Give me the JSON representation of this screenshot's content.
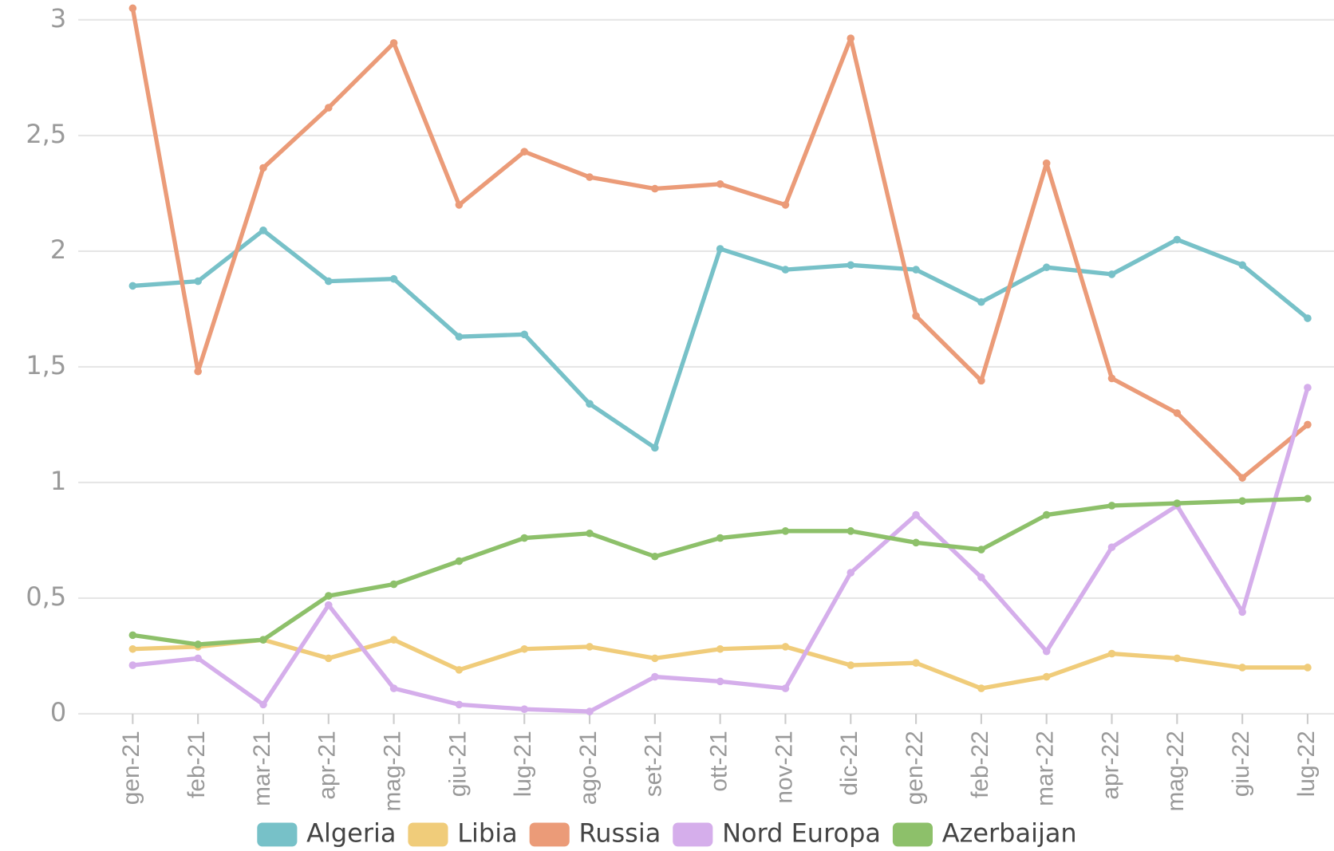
{
  "chart_data": {
    "type": "line",
    "categories": [
      "gen-21",
      "feb-21",
      "mar-21",
      "apr-21",
      "mag-21",
      "giu-21",
      "lug-21",
      "ago-21",
      "set-21",
      "ott-21",
      "nov-21",
      "dic-21",
      "gen-22",
      "feb-22",
      "mar-22",
      "apr-22",
      "mag-22",
      "giu-22",
      "lug-22"
    ],
    "series": [
      {
        "name": "Algeria",
        "color": "#77c1c8",
        "values": [
          1.85,
          1.87,
          2.09,
          1.87,
          1.88,
          1.63,
          1.64,
          1.34,
          1.15,
          2.01,
          1.92,
          1.94,
          1.92,
          1.78,
          1.93,
          1.9,
          2.05,
          1.94,
          1.71
        ]
      },
      {
        "name": "Libia",
        "color": "#f0cc7a",
        "values": [
          0.28,
          0.29,
          0.32,
          0.24,
          0.32,
          0.19,
          0.28,
          0.29,
          0.24,
          0.28,
          0.29,
          0.21,
          0.22,
          0.11,
          0.16,
          0.26,
          0.24,
          0.2,
          0.2
        ]
      },
      {
        "name": "Russia",
        "color": "#eb9b78",
        "values": [
          3.05,
          1.48,
          2.36,
          2.62,
          2.9,
          2.2,
          2.43,
          2.32,
          2.27,
          2.29,
          2.2,
          2.92,
          1.72,
          1.44,
          2.38,
          1.45,
          1.3,
          1.02,
          1.25
        ]
      },
      {
        "name": "Nord Europa",
        "color": "#d5aeeb",
        "values": [
          0.21,
          0.24,
          0.04,
          0.47,
          0.11,
          0.04,
          0.02,
          0.01,
          0.16,
          0.14,
          0.11,
          0.61,
          0.86,
          0.59,
          0.27,
          0.72,
          0.9,
          0.44,
          1.41
        ]
      },
      {
        "name": "Azerbaijan",
        "color": "#8dc06a",
        "values": [
          0.34,
          0.3,
          0.32,
          0.51,
          0.56,
          0.66,
          0.76,
          0.78,
          0.68,
          0.76,
          0.79,
          0.79,
          0.74,
          0.71,
          0.86,
          0.9,
          0.91,
          0.92,
          0.93
        ]
      }
    ],
    "ylim": [
      0,
      3.08
    ],
    "yticks": [
      0,
      {
        "value": 0.5,
        "label": "0,5"
      },
      1,
      {
        "value": 1.5,
        "label": "1,5"
      },
      2,
      {
        "value": 2.5,
        "label": "2,5"
      },
      3
    ],
    "grid": true,
    "legend": "bottom"
  }
}
